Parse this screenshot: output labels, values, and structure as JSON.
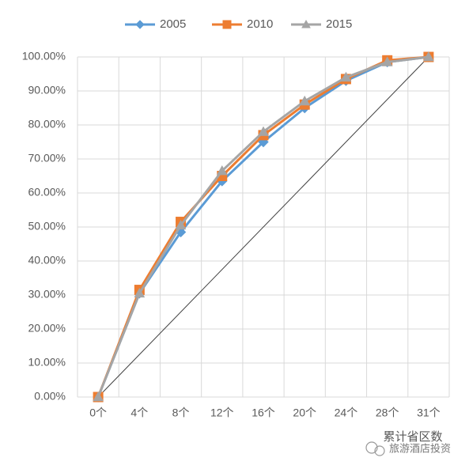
{
  "chart_data": {
    "type": "line",
    "categories": [
      "0个",
      "4个",
      "8个",
      "12个",
      "16个",
      "20个",
      "24个",
      "28个",
      "31个"
    ],
    "series": [
      {
        "name": "2005",
        "color": "#5b9bd5",
        "marker": "diamond",
        "values": [
          0,
          30.5,
          48.5,
          63.5,
          75,
          85,
          93,
          98.5,
          100
        ]
      },
      {
        "name": "2010",
        "color": "#ed7d31",
        "marker": "square",
        "values": [
          0,
          31.5,
          51.5,
          65,
          77,
          86,
          93.5,
          99,
          100
        ]
      },
      {
        "name": "2015",
        "color": "#a5a5a5",
        "marker": "triangle",
        "values": [
          0,
          30.5,
          50.5,
          66.5,
          78,
          87,
          94,
          98.5,
          100
        ]
      }
    ],
    "ylim": [
      0,
      100
    ],
    "yticks": [
      {
        "value": 0,
        "label": "0.00%"
      },
      {
        "value": 10,
        "label": "10.00%"
      },
      {
        "value": 20,
        "label": "20.00%"
      },
      {
        "value": 30,
        "label": "30.00%"
      },
      {
        "value": 40,
        "label": "40.00%"
      },
      {
        "value": 50,
        "label": "50.00%"
      },
      {
        "value": 60,
        "label": "60.00%"
      },
      {
        "value": 70,
        "label": "70.00%"
      },
      {
        "value": 80,
        "label": "80.00%"
      },
      {
        "value": 90,
        "label": "90.00%"
      },
      {
        "value": 100,
        "label": "100.00%"
      }
    ],
    "grid": true,
    "diagonal": true,
    "legend": "top",
    "x_label": "累计省区数",
    "watermark": "旅游酒店投资"
  }
}
